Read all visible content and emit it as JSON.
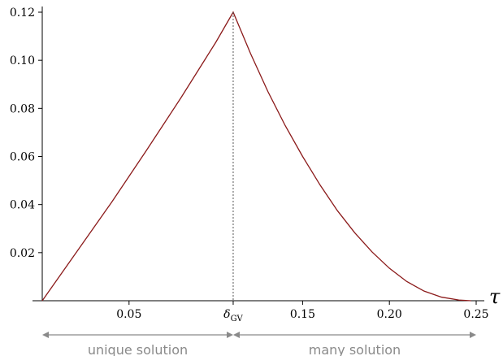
{
  "chart_data": {
    "type": "line",
    "xlabel": "τ",
    "ylabel": "",
    "xlim": [
      0.0,
      0.25
    ],
    "ylim": [
      0.0,
      0.12
    ],
    "x_ticks": [
      {
        "value": 0.05,
        "label": "0.05"
      },
      {
        "value": 0.11,
        "label": "δ",
        "sub": "GV"
      },
      {
        "value": 0.15,
        "label": "0.15"
      },
      {
        "value": 0.2,
        "label": "0.20"
      },
      {
        "value": 0.25,
        "label": "0.25"
      }
    ],
    "y_ticks": [
      {
        "value": 0.02,
        "label": "0.02"
      },
      {
        "value": 0.04,
        "label": "0.04"
      },
      {
        "value": 0.06,
        "label": "0.06"
      },
      {
        "value": 0.08,
        "label": "0.08"
      },
      {
        "value": 0.1,
        "label": "0.10"
      },
      {
        "value": 0.12,
        "label": "0.12"
      }
    ],
    "series": [
      {
        "color": "#8b1a1a",
        "x": [
          0.0,
          0.02,
          0.04,
          0.06,
          0.08,
          0.1,
          0.11,
          0.12,
          0.13,
          0.14,
          0.15,
          0.16,
          0.17,
          0.18,
          0.19,
          0.2,
          0.21,
          0.22,
          0.23,
          0.24,
          0.247
        ],
        "y": [
          0.0,
          0.0205,
          0.041,
          0.0625,
          0.0845,
          0.1075,
          0.12,
          0.1028,
          0.087,
          0.0728,
          0.06,
          0.0482,
          0.0375,
          0.0283,
          0.0203,
          0.0135,
          0.008,
          0.004,
          0.0015,
          0.0003,
          0.0
        ]
      }
    ],
    "marker": {
      "x": 0.11
    },
    "regions": [
      {
        "label": "unique solution",
        "x_start": 0.0,
        "x_end": 0.11
      },
      {
        "label": "many solution",
        "x_start": 0.11,
        "x_end": 0.25
      }
    ],
    "grid": false,
    "legend": "none"
  }
}
